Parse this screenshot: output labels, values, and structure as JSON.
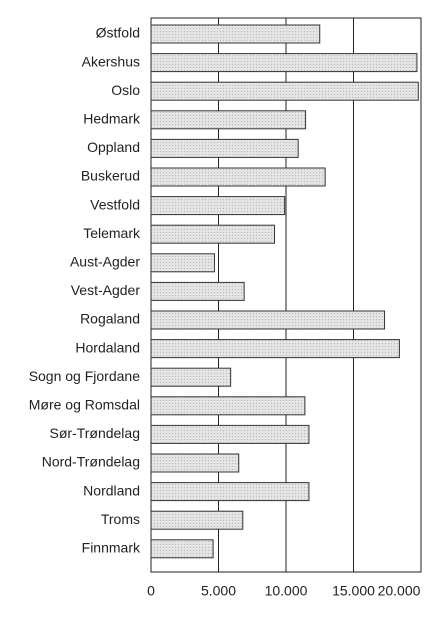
{
  "chart_data": {
    "type": "bar",
    "orientation": "horizontal",
    "categories": [
      "Østfold",
      "Akershus",
      "Oslo",
      "Hedmark",
      "Oppland",
      "Buskerud",
      "Vestfold",
      "Telemark",
      "Aust-Agder",
      "Vest-Agder",
      "Rogaland",
      "Hordaland",
      "Sogn og Fjordane",
      "Møre og Romsdal",
      "Sør-Trøndelag",
      "Nord-Trøndelag",
      "Nordland",
      "Troms",
      "Finnmark"
    ],
    "values": [
      12500,
      19700,
      19800,
      11450,
      10900,
      12900,
      9900,
      9150,
      4700,
      6900,
      17300,
      18400,
      5900,
      11400,
      11700,
      6500,
      11700,
      6800,
      4600
    ],
    "color": "#e2e2e2",
    "xlim": [
      0,
      20000
    ],
    "xticks": [
      0,
      {
        "value": 5000,
        "label": "5.000"
      },
      {
        "value": 10000,
        "label": "10.000"
      },
      {
        "value": 15000,
        "label": "15.000"
      },
      {
        "value": 20000,
        "label": "20.000"
      }
    ],
    "grid": true
  }
}
